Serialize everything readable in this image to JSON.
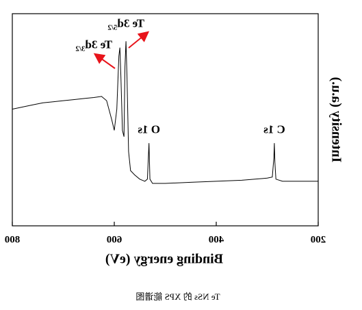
{
  "chart_data": {
    "type": "line",
    "xlabel": "Binding energy (eV)",
    "ylabel": "Intensity (a.u.)",
    "caption": "Te NSs 的 XPS 能谱图",
    "xlim": [
      200,
      800
    ],
    "xticks": [
      200,
      400,
      600,
      800
    ],
    "ylim": [
      0,
      100
    ],
    "series": [
      {
        "color": "#000000",
        "x": [
          800,
          780,
          760,
          740,
          720,
          700,
          680,
          660,
          640,
          625,
          615,
          605,
          600,
          595,
          591,
          589,
          587,
          584,
          581,
          579,
          577,
          575,
          572,
          568,
          560,
          550,
          540,
          535,
          532,
          530,
          525,
          500,
          450,
          400,
          350,
          300,
          290,
          287,
          286,
          285,
          283,
          270,
          250,
          200
        ],
        "values": [
          55,
          56,
          57,
          58,
          58.5,
          59,
          59.5,
          60,
          60.5,
          61,
          59,
          50,
          45,
          55,
          80,
          84,
          70,
          45,
          42,
          75,
          87,
          70,
          35,
          26,
          24,
          22,
          21,
          22,
          39,
          22,
          20,
          20,
          20.5,
          21,
          21.5,
          22.5,
          23,
          32,
          39,
          30,
          22,
          21,
          21,
          21
        ]
      }
    ],
    "annotations": [
      {
        "text": "Te 3d",
        "sub": "5/2",
        "x": 577,
        "y": 95
      },
      {
        "text": "Te 3d",
        "sub": "3/2",
        "x": 640,
        "y": 85
      },
      {
        "text": "O 1s",
        "x": 532,
        "y": 45
      },
      {
        "text": "C 1s",
        "x": 286,
        "y": 45
      }
    ]
  }
}
